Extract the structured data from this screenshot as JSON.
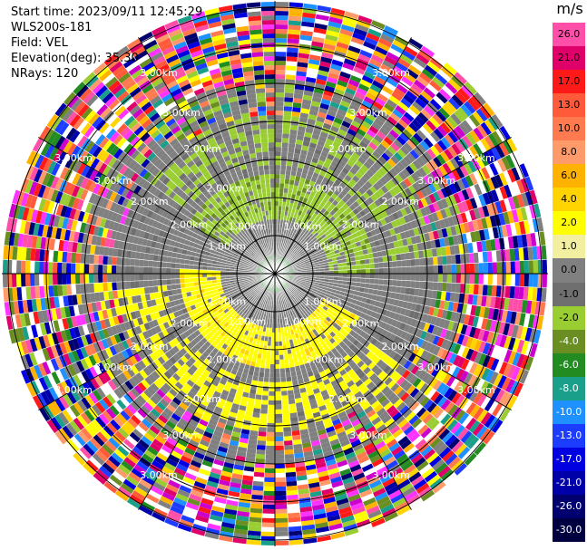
{
  "header": {
    "start_time": "Start time: 2023/09/11 12:45:29",
    "instrument": "WLS200s-181",
    "field": "Field: VEL",
    "elevation": "Elevation(deg): 35.30",
    "nrays": "NRays: 120"
  },
  "colorbar": {
    "unit": "m/s",
    "levels": [
      {
        "label": "26.0",
        "color": "#ff4fa9"
      },
      {
        "label": "21.0",
        "color": "#e0006a"
      },
      {
        "label": "17.0",
        "color": "#ff1a1a"
      },
      {
        "label": "13.0",
        "color": "#ff5a3a"
      },
      {
        "label": "10.0",
        "color": "#ff7b4f"
      },
      {
        "label": "8.0",
        "color": "#ff9a6a"
      },
      {
        "label": "6.0",
        "color": "#ffb200"
      },
      {
        "label": "4.0",
        "color": "#ffd400"
      },
      {
        "label": "2.0",
        "color": "#ffff00"
      },
      {
        "label": "1.0",
        "color": "#f2f0a0"
      },
      {
        "label": "0.0",
        "color": "#808080"
      },
      {
        "label": "-1.0",
        "color": "#6f6f6f"
      },
      {
        "label": "-2.0",
        "color": "#9acd32"
      },
      {
        "label": "-4.0",
        "color": "#6b8e23"
      },
      {
        "label": "-6.0",
        "color": "#228b22"
      },
      {
        "label": "-8.0",
        "color": "#1aa08a"
      },
      {
        "label": "-10.0",
        "color": "#1e90ff"
      },
      {
        "label": "-13.0",
        "color": "#1c3cff"
      },
      {
        "label": "-17.0",
        "color": "#0000e0"
      },
      {
        "label": "-21.0",
        "color": "#0000a8"
      },
      {
        "label": "-26.0",
        "color": "#00006e"
      },
      {
        "label": "-30.0",
        "color": "#000040"
      }
    ]
  },
  "chart_data": {
    "type": "heatmap",
    "projection": "polar-ppi",
    "field": "VEL",
    "nrays": 120,
    "range_ring_labels": [
      "1.00km",
      "2.00km",
      "3.00km"
    ],
    "unit": "m/s",
    "velocity_pattern": {
      "near_range_km": [
        0,
        2.0
      ],
      "positive_sector": "south-southwest",
      "negative_sector": "north-northeast",
      "beyond_range": "noise"
    }
  }
}
